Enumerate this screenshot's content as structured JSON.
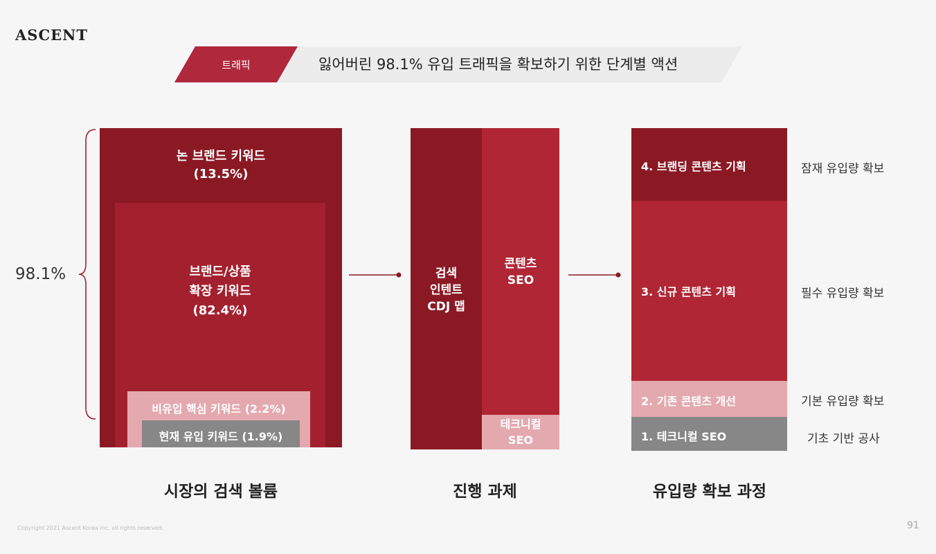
{
  "logo": "ASCENT",
  "header": {
    "tag": "트래픽",
    "title": "잃어버린 98.1% 유입 트래픽을 확보하기 위한 단계별 액션"
  },
  "left": {
    "total_pct": "98.1%",
    "non_brand": "논 브랜드 키워드",
    "non_brand_pct": "(13.5%)",
    "brand_line1": "브랜드/상품",
    "brand_line2": "확장 키워드",
    "brand_pct": "(82.4%)",
    "non_inflow": "비유입 핵심 키워드 (2.2%)",
    "current": "현재 유입 키워드 (1.9%)",
    "caption": "시장의 검색 볼륨"
  },
  "middle": {
    "intent_line1": "검색",
    "intent_line2": "인텐트",
    "intent_line3": "CDJ 맵",
    "content_line1": "콘텐츠",
    "content_line2": "SEO",
    "tech_line1": "테크니컬",
    "tech_line2": "SEO",
    "caption": "진행 과제"
  },
  "right": {
    "steps": [
      {
        "label": "4. 브랜딩 콘텐츠 기획",
        "side": "잠재 유입량 확보"
      },
      {
        "label": "3. 신규 콘텐츠 기획",
        "side": "필수 유입량 확보"
      },
      {
        "label": "2. 기존 콘텐츠 개선",
        "side": "기본 유입량 확보"
      },
      {
        "label": "1. 테크니컬 SEO",
        "side": "기초 기반 공사"
      }
    ],
    "caption": "유입량 확보 과정"
  },
  "footer": {
    "copyright": "Copyright 2021 Ascent Korea inc. all rights reserved.",
    "page": "91"
  },
  "colors": {
    "dark_red": "#8b1924",
    "red": "#b02634",
    "pink": "#e3a9ae",
    "grey": "#878787"
  }
}
